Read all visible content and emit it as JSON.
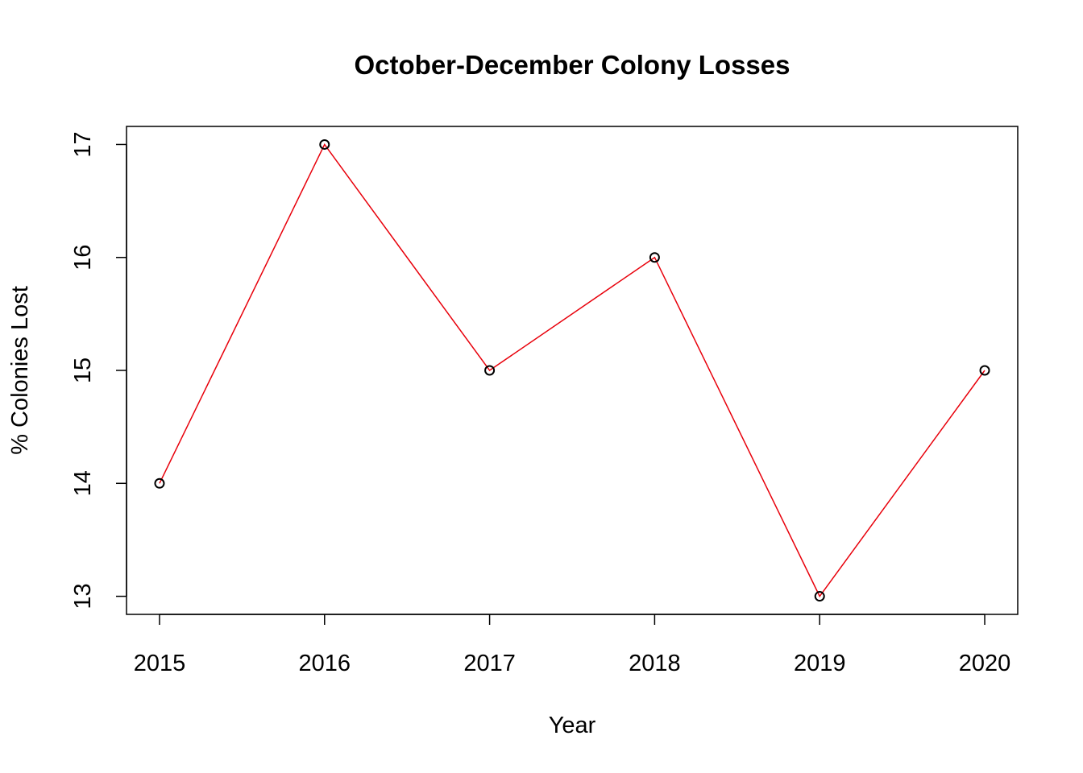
{
  "chart_data": {
    "type": "line",
    "title": "October-December Colony Losses",
    "xlabel": "Year",
    "ylabel": "% Colonies Lost",
    "x": [
      2015,
      2016,
      2017,
      2018,
      2019,
      2020
    ],
    "series": [
      {
        "values": [
          14,
          17,
          15,
          16,
          13,
          15
        ],
        "line_color": "#e8000b",
        "marker_color": "#000000",
        "marker": "open-circle"
      }
    ],
    "x_ticks": [
      "2015",
      "2016",
      "2017",
      "2018",
      "2019",
      "2020"
    ],
    "y_ticks": [
      "13",
      "14",
      "15",
      "16",
      "17"
    ],
    "xlim": [
      2014.8,
      2020.2
    ],
    "ylim": [
      12.84,
      17.16
    ],
    "grid": false,
    "legend": "none"
  }
}
